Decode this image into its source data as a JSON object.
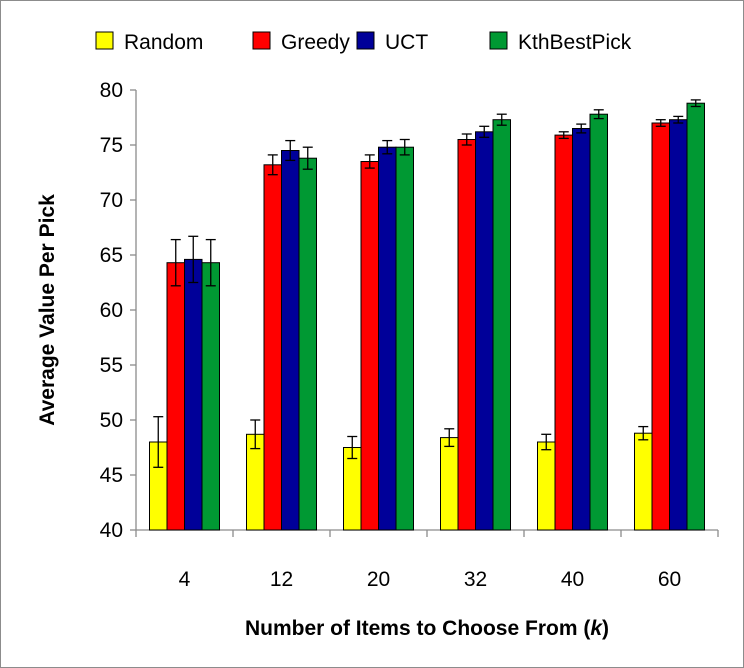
{
  "chart_data": {
    "type": "bar",
    "title": "",
    "xlabel": "Number of Items to Choose From (",
    "xlabel_var": "k",
    "xlabel_suffix": ")",
    "ylabel": "Average Value Per Pick",
    "ylim": [
      40,
      80
    ],
    "yticks": [
      40,
      45,
      50,
      55,
      60,
      65,
      70,
      75,
      80
    ],
    "grid": false,
    "legend_position": "top",
    "categories": [
      "4",
      "12",
      "20",
      "32",
      "40",
      "60"
    ],
    "series": [
      {
        "name": "Random",
        "color": "#ffff00",
        "values": [
          48.0,
          48.7,
          47.5,
          48.4,
          48.0,
          48.8
        ],
        "errors": [
          2.3,
          1.3,
          1.0,
          0.8,
          0.7,
          0.6
        ]
      },
      {
        "name": "Greedy",
        "color": "#ff0000",
        "values": [
          64.3,
          73.2,
          73.5,
          75.5,
          75.9,
          77.0
        ],
        "errors": [
          2.1,
          0.9,
          0.6,
          0.5,
          0.3,
          0.3
        ]
      },
      {
        "name": "UCT",
        "color": "#000099",
        "values": [
          64.6,
          74.5,
          74.8,
          76.2,
          76.5,
          77.3
        ],
        "errors": [
          2.1,
          0.9,
          0.6,
          0.5,
          0.4,
          0.3
        ]
      },
      {
        "name": "KthBestPick",
        "color": "#009933",
        "values": [
          64.3,
          73.8,
          74.8,
          77.3,
          77.8,
          78.8
        ],
        "errors": [
          2.1,
          1.0,
          0.7,
          0.5,
          0.4,
          0.3
        ]
      }
    ]
  }
}
